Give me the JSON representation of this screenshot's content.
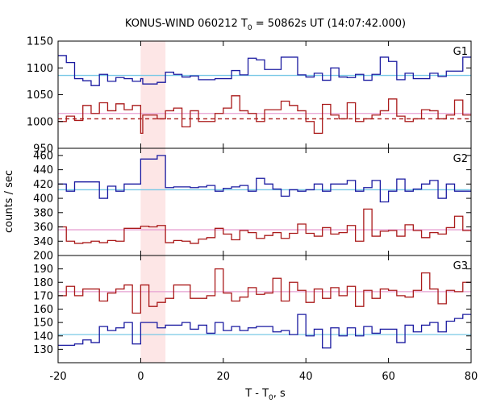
{
  "chart_data": {
    "type": "line",
    "title_parts": [
      "KONUS-WIND 060212 T",
      "0",
      " = 50862s UT (14:07:42.000)"
    ],
    "xlabel_parts": [
      "T - T",
      "0",
      ", s"
    ],
    "ylabel": "counts / sec",
    "xlim": [
      -20,
      80
    ],
    "xticks": [
      -20,
      0,
      20,
      40,
      60,
      80
    ],
    "burst_interval": [
      0,
      6
    ],
    "bin_edges": [
      -20,
      -18,
      -16,
      -14,
      -12,
      -10,
      -8,
      -6,
      -4,
      -2,
      0,
      0.5,
      2,
      4,
      6,
      8,
      10,
      12,
      14,
      16,
      18,
      20,
      22,
      24,
      26,
      28,
      30,
      32,
      34,
      36,
      38,
      40,
      42,
      44,
      46,
      48,
      50,
      52,
      54,
      56,
      58,
      60,
      62,
      64,
      66,
      68,
      70,
      72,
      74,
      76,
      78,
      80
    ],
    "panels": [
      {
        "name": "G1",
        "ylim": [
          950,
          1150
        ],
        "yticks": [
          950,
          1000,
          1050,
          1100,
          1150
        ],
        "series": [
          {
            "color": "#1a1aa0",
            "values": [
              1123,
              1110,
              1080,
              1076,
              1067,
              1088,
              1075,
              1082,
              1080,
              1075,
              1080,
              1070,
              1070,
              1073,
              1092,
              1088,
              1083,
              1085,
              1078,
              1078,
              1080,
              1080,
              1095,
              1087,
              1118,
              1115,
              1097,
              1097,
              1120,
              1120,
              1087,
              1083,
              1090,
              1077,
              1100,
              1083,
              1082,
              1088,
              1077,
              1088,
              1120,
              1112,
              1078,
              1090,
              1080,
              1080,
              1090,
              1084,
              1094,
              1094,
              1120
            ]
          },
          {
            "color": "#aa1a1a",
            "values": [
              1000,
              1010,
              1002,
              1030,
              1015,
              1035,
              1020,
              1033,
              1022,
              1030,
              978,
              1012,
              1012,
              1005,
              1020,
              1025,
              990,
              1020,
              1000,
              1000,
              1015,
              1025,
              1048,
              1020,
              1015,
              1000,
              1022,
              1022,
              1038,
              1030,
              1020,
              1000,
              978,
              1032,
              1012,
              1005,
              1035,
              1000,
              1005,
              1012,
              1020,
              1042,
              1010,
              1000,
              1005,
              1022,
              1020,
              1005,
              1012,
              1040,
              1012
            ]
          }
        ],
        "background": {
          "color": "#aa1a1a",
          "value": 1005
        },
        "fit_lines": [
          {
            "color": "#78c8e6",
            "value": 1086
          },
          {
            "color": "#e6a0d2",
            "value": 1015
          }
        ]
      },
      {
        "name": "G2",
        "ylim": [
          320,
          470
        ],
        "yticks": [
          320,
          340,
          360,
          380,
          400,
          420,
          440,
          460
        ],
        "series": [
          {
            "color": "#1a1aa0",
            "values": [
              420,
              410,
              423,
              423,
              423,
              400,
              417,
              410,
              420,
              420,
              455,
              455,
              455,
              460,
              415,
              416,
              416,
              415,
              416,
              418,
              410,
              414,
              416,
              418,
              410,
              428,
              420,
              413,
              403,
              412,
              410,
              412,
              420,
              410,
              420,
              420,
              425,
              410,
              415,
              425,
              395,
              410,
              427,
              410,
              413,
              420,
              425,
              400,
              420,
              410,
              410
            ]
          },
          {
            "color": "#aa1a1a",
            "values": [
              360,
              340,
              337,
              338,
              340,
              338,
              341,
              340,
              358,
              358,
              361,
              361,
              360,
              362,
              338,
              341,
              340,
              337,
              343,
              345,
              358,
              350,
              342,
              355,
              352,
              344,
              348,
              352,
              344,
              351,
              364,
              351,
              347,
              359,
              350,
              352,
              362,
              340,
              385,
              347,
              354,
              355,
              347,
              363,
              355,
              345,
              352,
              350,
              359,
              375,
              355
            ]
          }
        ],
        "fit_lines": [
          {
            "color": "#78c8e6",
            "value": 412
          },
          {
            "color": "#e6a0d2",
            "value": 356
          }
        ]
      },
      {
        "name": "G3",
        "ylim": [
          120,
          200
        ],
        "yticks": [
          120,
          130,
          140,
          150,
          160,
          170,
          180,
          190,
          200
        ],
        "series": [
          {
            "color": "#aa1a1a",
            "values": [
              170,
              177,
              170,
              175,
              175,
              166,
              172,
              175,
              178,
              157,
              178,
              178,
              162,
              165,
              168,
              178,
              178,
              168,
              168,
              170,
              190,
              172,
              166,
              169,
              176,
              171,
              172,
              183,
              166,
              180,
              174,
              165,
              175,
              168,
              176,
              170,
              177,
              162,
              174,
              168,
              175,
              174,
              170,
              169,
              174,
              187,
              175,
              164,
              174,
              173,
              180
            ]
          },
          {
            "color": "#1a1aa0",
            "values": [
              133,
              133,
              134,
              137,
              135,
              147,
              144,
              146,
              150,
              134,
              150,
              150,
              150,
              146,
              148,
              148,
              150,
              145,
              148,
              142,
              150,
              144,
              147,
              144,
              146,
              147,
              147,
              143,
              144,
              141,
              156,
              140,
              145,
              131,
              146,
              140,
              146,
              140,
              147,
              142,
              145,
              145,
              135,
              148,
              143,
              148,
              150,
              143,
              151,
              153,
              156
            ]
          }
        ],
        "fit_lines": [
          {
            "color": "#e6a0d2",
            "value": 173
          },
          {
            "color": "#78c8e6",
            "value": 141
          }
        ]
      }
    ]
  }
}
